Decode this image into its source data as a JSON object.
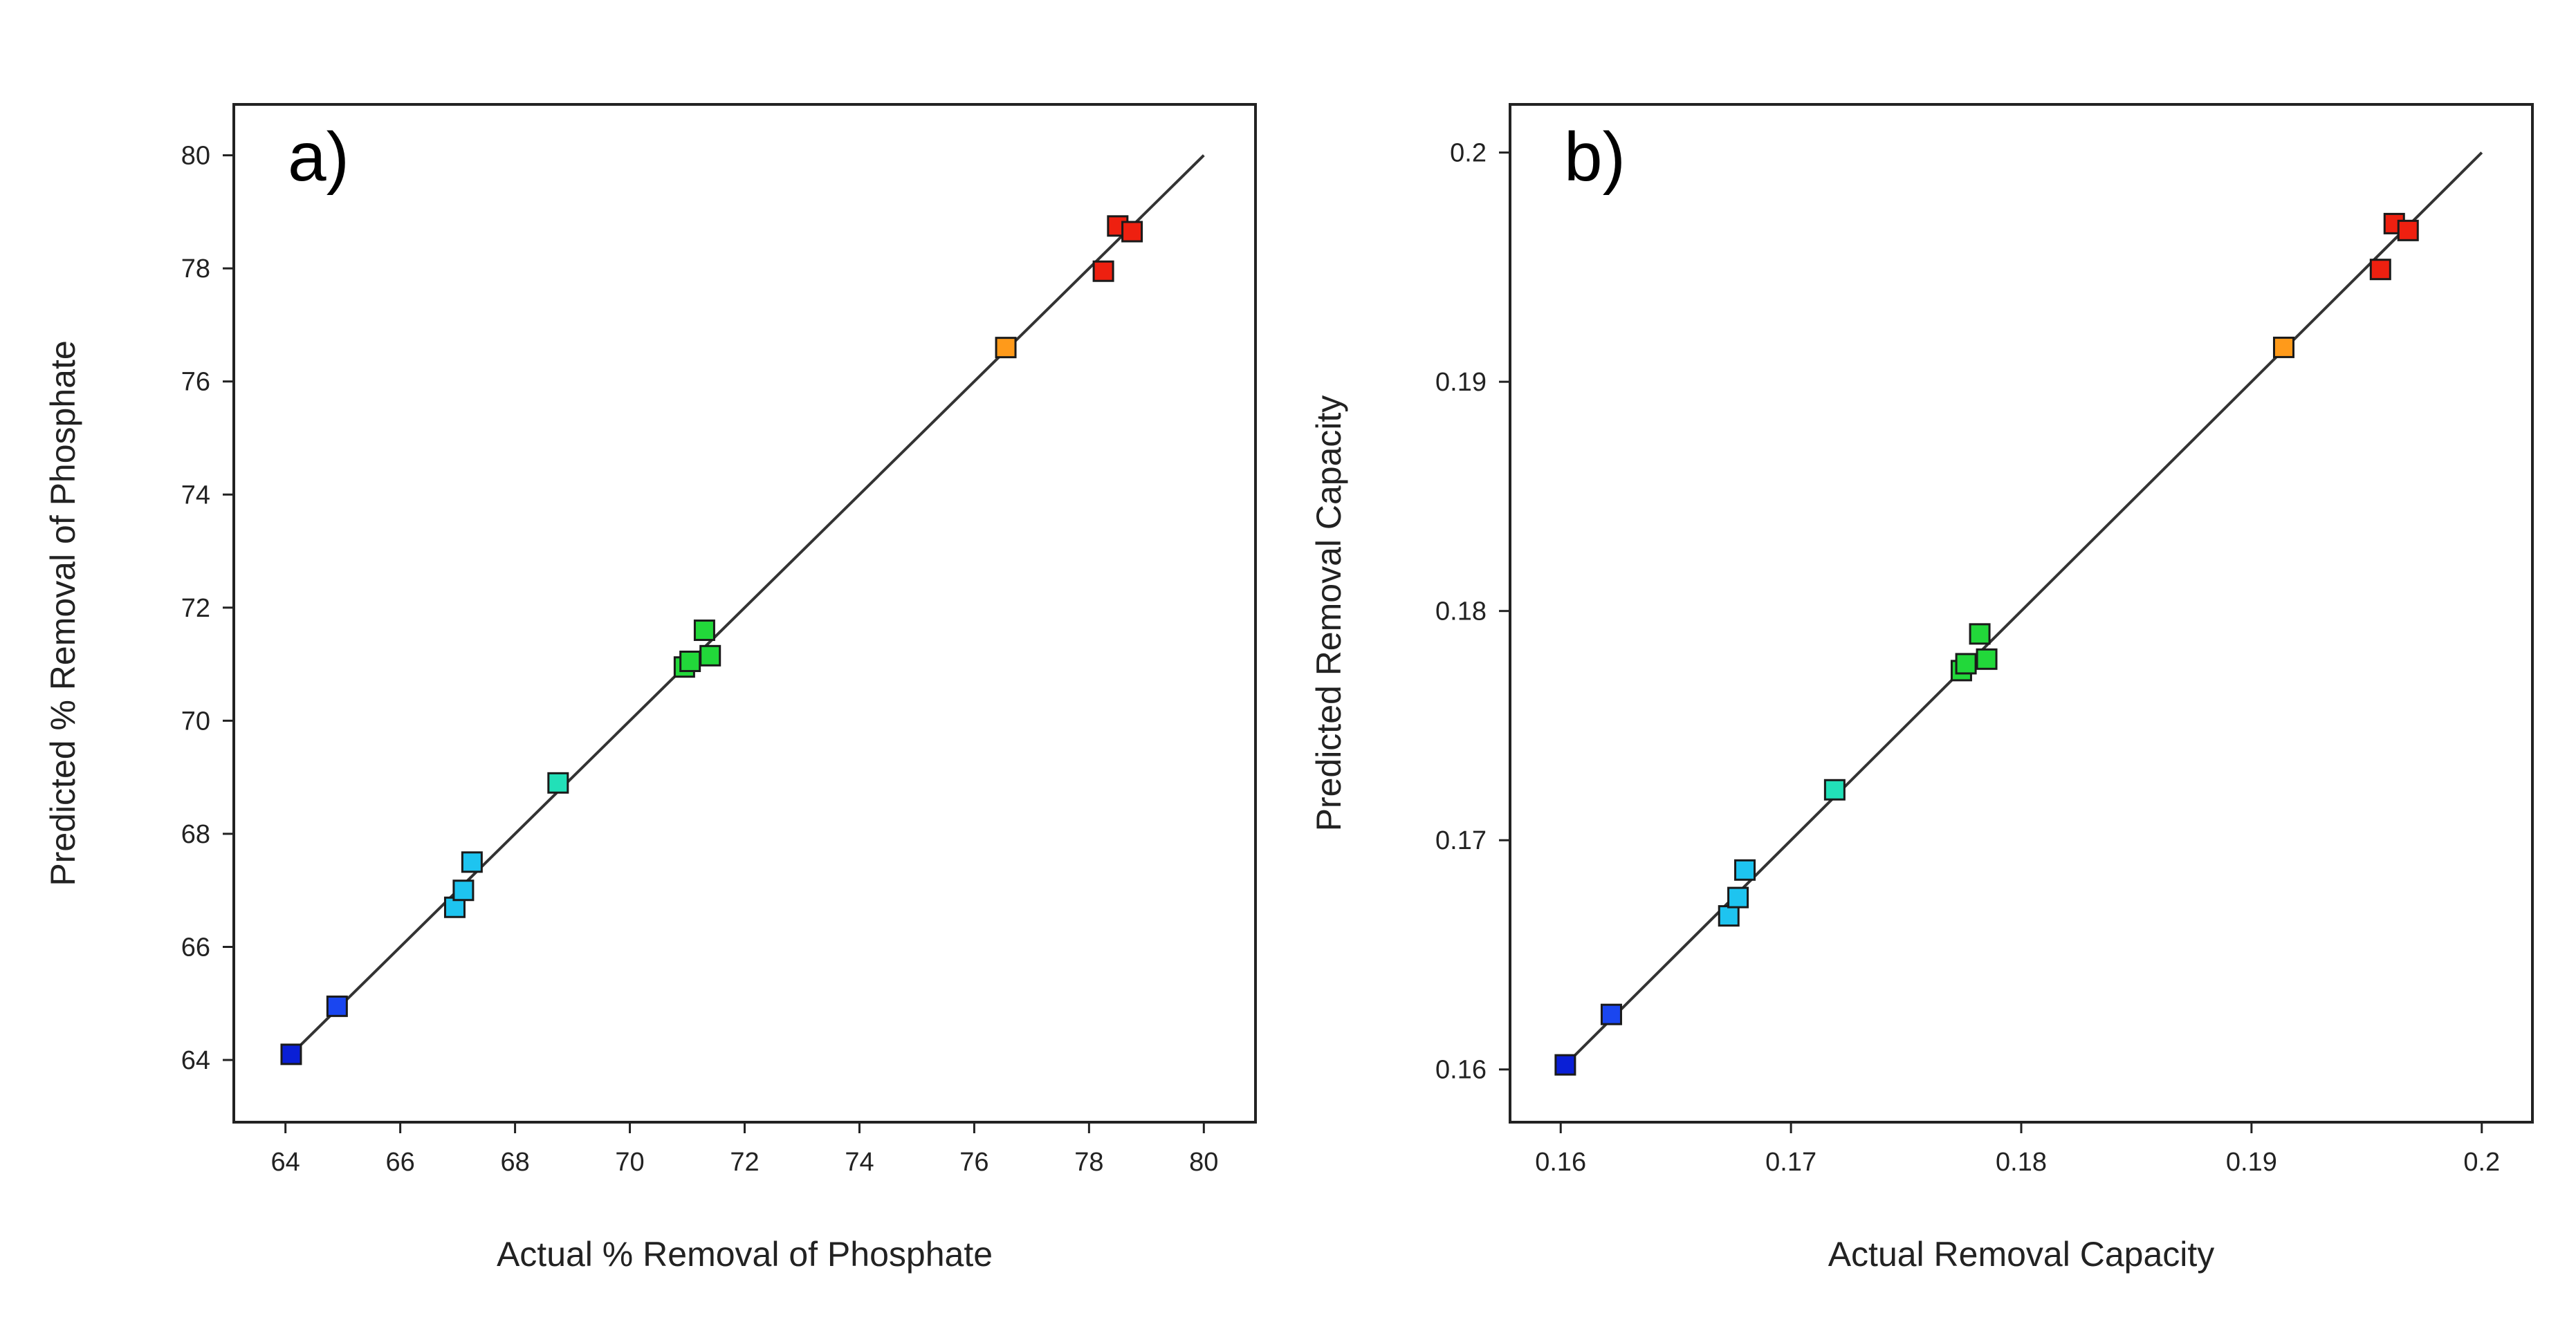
{
  "chart_data": [
    {
      "type": "scatter",
      "panel_label": "a)",
      "xlabel": "Actual % Removal of Phosphate",
      "ylabel": "Predicted % Removal of Phosphate",
      "xlim": [
        63.1,
        80.9
      ],
      "ylim": [
        62.9,
        80.9
      ],
      "xticks": [
        64,
        66,
        68,
        70,
        72,
        74,
        76,
        78,
        80
      ],
      "yticks": [
        64,
        66,
        68,
        70,
        72,
        74,
        76,
        78,
        80
      ],
      "tick_labels_x": [
        "64",
        "66",
        "68",
        "70",
        "72",
        "74",
        "76",
        "78",
        "80"
      ],
      "tick_labels_y": [
        "64",
        "66",
        "68",
        "70",
        "72",
        "74",
        "76",
        "78",
        "80"
      ],
      "line": {
        "from": [
          64,
          64
        ],
        "to": [
          80,
          80
        ]
      },
      "points": [
        {
          "x": 64.1,
          "y": 64.1,
          "color": "#0a1fd6"
        },
        {
          "x": 64.9,
          "y": 64.95,
          "color": "#1a46f0"
        },
        {
          "x": 66.95,
          "y": 66.7,
          "color": "#1ec4f0"
        },
        {
          "x": 67.1,
          "y": 67.0,
          "color": "#1ec4f0"
        },
        {
          "x": 67.25,
          "y": 67.5,
          "color": "#1ec4f0"
        },
        {
          "x": 68.75,
          "y": 68.9,
          "color": "#22e0b8"
        },
        {
          "x": 70.95,
          "y": 70.95,
          "color": "#22d83a"
        },
        {
          "x": 71.05,
          "y": 71.05,
          "color": "#22d83a"
        },
        {
          "x": 71.3,
          "y": 71.6,
          "color": "#22d83a"
        },
        {
          "x": 71.4,
          "y": 71.15,
          "color": "#22d83a"
        },
        {
          "x": 76.55,
          "y": 76.6,
          "color": "#ff9a1a"
        },
        {
          "x": 78.25,
          "y": 77.95,
          "color": "#ee2010"
        },
        {
          "x": 78.5,
          "y": 78.75,
          "color": "#ee2010"
        },
        {
          "x": 78.75,
          "y": 78.65,
          "color": "#ee2010"
        }
      ]
    },
    {
      "type": "scatter",
      "panel_label": "b)",
      "xlabel": "Actual Removal Capacity",
      "ylabel": "Predicted Removal Capacity",
      "xlim": [
        0.1578,
        0.2022
      ],
      "ylim": [
        0.1577,
        0.2021
      ],
      "xticks": [
        0.16,
        0.17,
        0.18,
        0.19,
        0.2
      ],
      "yticks": [
        0.16,
        0.17,
        0.18,
        0.19,
        0.2
      ],
      "tick_labels_x": [
        "0.16",
        "0.17",
        "0.18",
        "0.19",
        "0.2"
      ],
      "tick_labels_y": [
        "0.16",
        "0.17",
        "0.18",
        "0.19",
        "0.2"
      ],
      "line": {
        "from": [
          0.16,
          0.16
        ],
        "to": [
          0.2,
          0.2
        ]
      },
      "points": [
        {
          "x": 0.1602,
          "y": 0.1602,
          "color": "#0a1fd6"
        },
        {
          "x": 0.1622,
          "y": 0.1624,
          "color": "#1a46f0"
        },
        {
          "x": 0.1673,
          "y": 0.1667,
          "color": "#1ec4f0"
        },
        {
          "x": 0.1677,
          "y": 0.1675,
          "color": "#1ec4f0"
        },
        {
          "x": 0.168,
          "y": 0.1687,
          "color": "#1ec4f0"
        },
        {
          "x": 0.1719,
          "y": 0.1722,
          "color": "#22e0b8"
        },
        {
          "x": 0.1774,
          "y": 0.1774,
          "color": "#22d83a"
        },
        {
          "x": 0.1776,
          "y": 0.1777,
          "color": "#22d83a"
        },
        {
          "x": 0.1782,
          "y": 0.179,
          "color": "#22d83a"
        },
        {
          "x": 0.1785,
          "y": 0.1779,
          "color": "#22d83a"
        },
        {
          "x": 0.1914,
          "y": 0.1915,
          "color": "#ff9a1a"
        },
        {
          "x": 0.1956,
          "y": 0.1949,
          "color": "#ee2010"
        },
        {
          "x": 0.1962,
          "y": 0.1969,
          "color": "#ee2010"
        },
        {
          "x": 0.1968,
          "y": 0.1966,
          "color": "#ee2010"
        }
      ]
    }
  ]
}
